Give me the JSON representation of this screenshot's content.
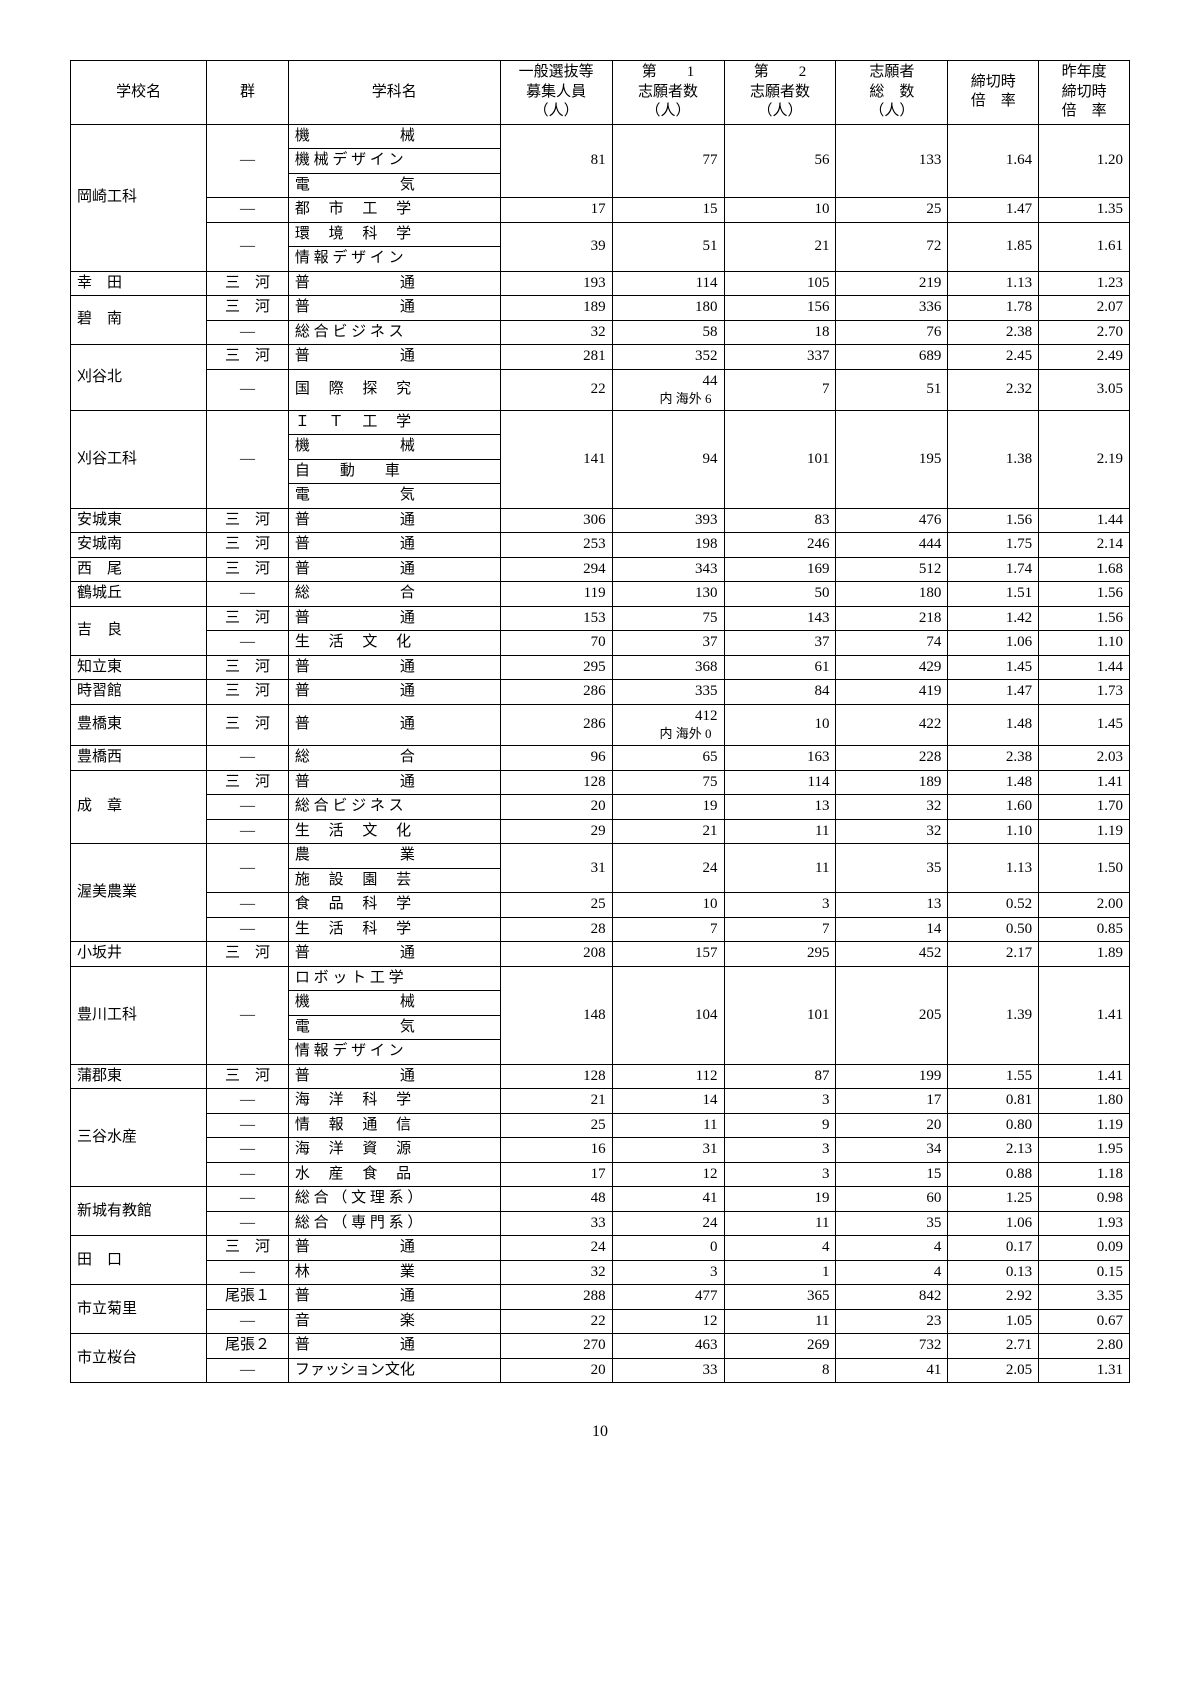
{
  "page_number": "10",
  "headers": {
    "school": "学校名",
    "group": "群",
    "dept": "学科名",
    "capacity": "一般選抜等\n募集人員\n（人）",
    "first": "第　　1\n志願者数\n（人）",
    "second": "第　　2\n志願者数\n（人）",
    "total": "志願者\n総　数\n（人）",
    "rate": "締切時\n倍　率",
    "prev": "昨年度\n締切時\n倍　率"
  },
  "rows": [
    {
      "school": "岡崎工科",
      "school_span": 3,
      "group": "―",
      "depts": [
        "機　　　　　　械",
        "機 械 デ ザ イ ン",
        "電　　　　　　気"
      ],
      "cap": "81",
      "c1": "77",
      "c2": "56",
      "tot": "133",
      "r": "1.64",
      "p": "1.20"
    },
    {
      "group": "―",
      "depts": [
        "都　 市　 工　 学"
      ],
      "cap": "17",
      "c1": "15",
      "c2": "10",
      "tot": "25",
      "r": "1.47",
      "p": "1.35"
    },
    {
      "group": "―",
      "depts": [
        "環　 境　 科　 学",
        "情 報 デ ザ イ ン"
      ],
      "cap": "39",
      "c1": "51",
      "c2": "21",
      "tot": "72",
      "r": "1.85",
      "p": "1.61"
    },
    {
      "school": "幸　田",
      "group": "三　河",
      "depts": [
        "普　　　　　　通"
      ],
      "cap": "193",
      "c1": "114",
      "c2": "105",
      "tot": "219",
      "r": "1.13",
      "p": "1.23"
    },
    {
      "school": "碧　南",
      "school_span": 2,
      "group": "三　河",
      "depts": [
        "普　　　　　　通"
      ],
      "cap": "189",
      "c1": "180",
      "c2": "156",
      "tot": "336",
      "r": "1.78",
      "p": "2.07"
    },
    {
      "group": "―",
      "depts": [
        "総 合 ビ ジ ネ ス"
      ],
      "cap": "32",
      "c1": "58",
      "c2": "18",
      "tot": "76",
      "r": "2.38",
      "p": "2.70"
    },
    {
      "school": "刈谷北",
      "school_span": 2,
      "group": "三　河",
      "depts": [
        "普　　　　　　通"
      ],
      "cap": "281",
      "c1": "352",
      "c2": "337",
      "tot": "689",
      "r": "2.45",
      "p": "2.49"
    },
    {
      "group": "―",
      "depts": [
        "国　 際　 探　 究"
      ],
      "cap": "22",
      "c1": "44",
      "c1_sub": "内 海外 6",
      "c2": "7",
      "tot": "51",
      "r": "2.32",
      "p": "3.05"
    },
    {
      "school": "刈谷工科",
      "group": "―",
      "depts": [
        "Ｉ　 Ｔ　 工　 学",
        "機　　　　　　械",
        "自　　動　　車",
        "電　　　　　　気"
      ],
      "cap": "141",
      "c1": "94",
      "c2": "101",
      "tot": "195",
      "r": "1.38",
      "p": "2.19"
    },
    {
      "school": "安城東",
      "group": "三　河",
      "depts": [
        "普　　　　　　通"
      ],
      "cap": "306",
      "c1": "393",
      "c2": "83",
      "tot": "476",
      "r": "1.56",
      "p": "1.44"
    },
    {
      "school": "安城南",
      "group": "三　河",
      "depts": [
        "普　　　　　　通"
      ],
      "cap": "253",
      "c1": "198",
      "c2": "246",
      "tot": "444",
      "r": "1.75",
      "p": "2.14"
    },
    {
      "school": "西　尾",
      "group": "三　河",
      "depts": [
        "普　　　　　　通"
      ],
      "cap": "294",
      "c1": "343",
      "c2": "169",
      "tot": "512",
      "r": "1.74",
      "p": "1.68"
    },
    {
      "school": "鶴城丘",
      "group": "―",
      "depts": [
        "総　　　　　　合"
      ],
      "cap": "119",
      "c1": "130",
      "c2": "50",
      "tot": "180",
      "r": "1.51",
      "p": "1.56"
    },
    {
      "school": "吉　良",
      "school_span": 2,
      "group": "三　河",
      "depts": [
        "普　　　　　　通"
      ],
      "cap": "153",
      "c1": "75",
      "c2": "143",
      "tot": "218",
      "r": "1.42",
      "p": "1.56"
    },
    {
      "group": "―",
      "depts": [
        "生　 活　 文　 化"
      ],
      "cap": "70",
      "c1": "37",
      "c2": "37",
      "tot": "74",
      "r": "1.06",
      "p": "1.10"
    },
    {
      "school": "知立東",
      "group": "三　河",
      "depts": [
        "普　　　　　　通"
      ],
      "cap": "295",
      "c1": "368",
      "c2": "61",
      "tot": "429",
      "r": "1.45",
      "p": "1.44"
    },
    {
      "school": "時習館",
      "group": "三　河",
      "depts": [
        "普　　　　　　通"
      ],
      "cap": "286",
      "c1": "335",
      "c2": "84",
      "tot": "419",
      "r": "1.47",
      "p": "1.73"
    },
    {
      "school": "豊橋東",
      "group": "三　河",
      "depts": [
        "普　　　　　　通"
      ],
      "cap": "286",
      "c1": "412",
      "c1_sub": "内 海外 0",
      "c2": "10",
      "tot": "422",
      "r": "1.48",
      "p": "1.45"
    },
    {
      "school": "豊橋西",
      "group": "―",
      "depts": [
        "総　　　　　　合"
      ],
      "cap": "96",
      "c1": "65",
      "c2": "163",
      "tot": "228",
      "r": "2.38",
      "p": "2.03"
    },
    {
      "school": "成　章",
      "school_span": 3,
      "group": "三　河",
      "depts": [
        "普　　　　　　通"
      ],
      "cap": "128",
      "c1": "75",
      "c2": "114",
      "tot": "189",
      "r": "1.48",
      "p": "1.41"
    },
    {
      "group": "―",
      "depts": [
        "総 合 ビ ジ ネ ス"
      ],
      "cap": "20",
      "c1": "19",
      "c2": "13",
      "tot": "32",
      "r": "1.60",
      "p": "1.70"
    },
    {
      "group": "―",
      "depts": [
        "生　 活　 文　 化"
      ],
      "cap": "29",
      "c1": "21",
      "c2": "11",
      "tot": "32",
      "r": "1.10",
      "p": "1.19"
    },
    {
      "school": "渥美農業",
      "school_span": 3,
      "group": "―",
      "depts": [
        "農　　　　　　業",
        "施　 設　 園　 芸"
      ],
      "cap": "31",
      "c1": "24",
      "c2": "11",
      "tot": "35",
      "r": "1.13",
      "p": "1.50"
    },
    {
      "group": "―",
      "depts": [
        "食　 品　 科　 学"
      ],
      "cap": "25",
      "c1": "10",
      "c2": "3",
      "tot": "13",
      "r": "0.52",
      "p": "2.00"
    },
    {
      "group": "―",
      "depts": [
        "生　 活　 科　 学"
      ],
      "cap": "28",
      "c1": "7",
      "c2": "7",
      "tot": "14",
      "r": "0.50",
      "p": "0.85"
    },
    {
      "school": "小坂井",
      "group": "三　河",
      "depts": [
        "普　　　　　　通"
      ],
      "cap": "208",
      "c1": "157",
      "c2": "295",
      "tot": "452",
      "r": "2.17",
      "p": "1.89"
    },
    {
      "school": "豊川工科",
      "group": "―",
      "depts": [
        "ロ ボ ッ ト 工 学",
        "機　　　　　　械",
        "電　　　　　　気",
        "情 報 デ ザ イ ン"
      ],
      "cap": "148",
      "c1": "104",
      "c2": "101",
      "tot": "205",
      "r": "1.39",
      "p": "1.41"
    },
    {
      "school": "蒲郡東",
      "group": "三　河",
      "depts": [
        "普　　　　　　通"
      ],
      "cap": "128",
      "c1": "112",
      "c2": "87",
      "tot": "199",
      "r": "1.55",
      "p": "1.41"
    },
    {
      "school": "三谷水産",
      "school_span": 4,
      "group": "―",
      "depts": [
        "海　 洋　 科　 学"
      ],
      "cap": "21",
      "c1": "14",
      "c2": "3",
      "tot": "17",
      "r": "0.81",
      "p": "1.80"
    },
    {
      "group": "―",
      "depts": [
        "情　 報　 通　 信"
      ],
      "cap": "25",
      "c1": "11",
      "c2": "9",
      "tot": "20",
      "r": "0.80",
      "p": "1.19"
    },
    {
      "group": "―",
      "depts": [
        "海　 洋　 資　 源"
      ],
      "cap": "16",
      "c1": "31",
      "c2": "3",
      "tot": "34",
      "r": "2.13",
      "p": "1.95"
    },
    {
      "group": "―",
      "depts": [
        "水　 産　 食　 品"
      ],
      "cap": "17",
      "c1": "12",
      "c2": "3",
      "tot": "15",
      "r": "0.88",
      "p": "1.18"
    },
    {
      "school": "新城有教館",
      "school_span": 2,
      "group": "―",
      "depts": [
        "総 合 （ 文 理 系 ）"
      ],
      "cap": "48",
      "c1": "41",
      "c2": "19",
      "tot": "60",
      "r": "1.25",
      "p": "0.98"
    },
    {
      "group": "―",
      "depts": [
        "総 合 （ 専 門 系 ）"
      ],
      "cap": "33",
      "c1": "24",
      "c2": "11",
      "tot": "35",
      "r": "1.06",
      "p": "1.93"
    },
    {
      "school": "田　口",
      "school_span": 2,
      "group": "三　河",
      "depts": [
        "普　　　　　　通"
      ],
      "cap": "24",
      "c1": "0",
      "c2": "4",
      "tot": "4",
      "r": "0.17",
      "p": "0.09"
    },
    {
      "group": "―",
      "depts": [
        "林　　　　　　業"
      ],
      "cap": "32",
      "c1": "3",
      "c2": "1",
      "tot": "4",
      "r": "0.13",
      "p": "0.15"
    },
    {
      "school": "市立菊里",
      "school_span": 2,
      "group": "尾張１",
      "depts": [
        "普　　　　　　通"
      ],
      "cap": "288",
      "c1": "477",
      "c2": "365",
      "tot": "842",
      "r": "2.92",
      "p": "3.35"
    },
    {
      "group": "―",
      "depts": [
        "音　　　　　　楽"
      ],
      "cap": "22",
      "c1": "12",
      "c2": "11",
      "tot": "23",
      "r": "1.05",
      "p": "0.67"
    },
    {
      "school": "市立桜台",
      "school_span": 2,
      "group": "尾張２",
      "depts": [
        "普　　　　　　通"
      ],
      "cap": "270",
      "c1": "463",
      "c2": "269",
      "tot": "732",
      "r": "2.71",
      "p": "2.80"
    },
    {
      "group": "―",
      "depts": [
        "ファッション文化"
      ],
      "cap": "20",
      "c1": "33",
      "c2": "8",
      "tot": "41",
      "r": "2.05",
      "p": "1.31"
    }
  ]
}
